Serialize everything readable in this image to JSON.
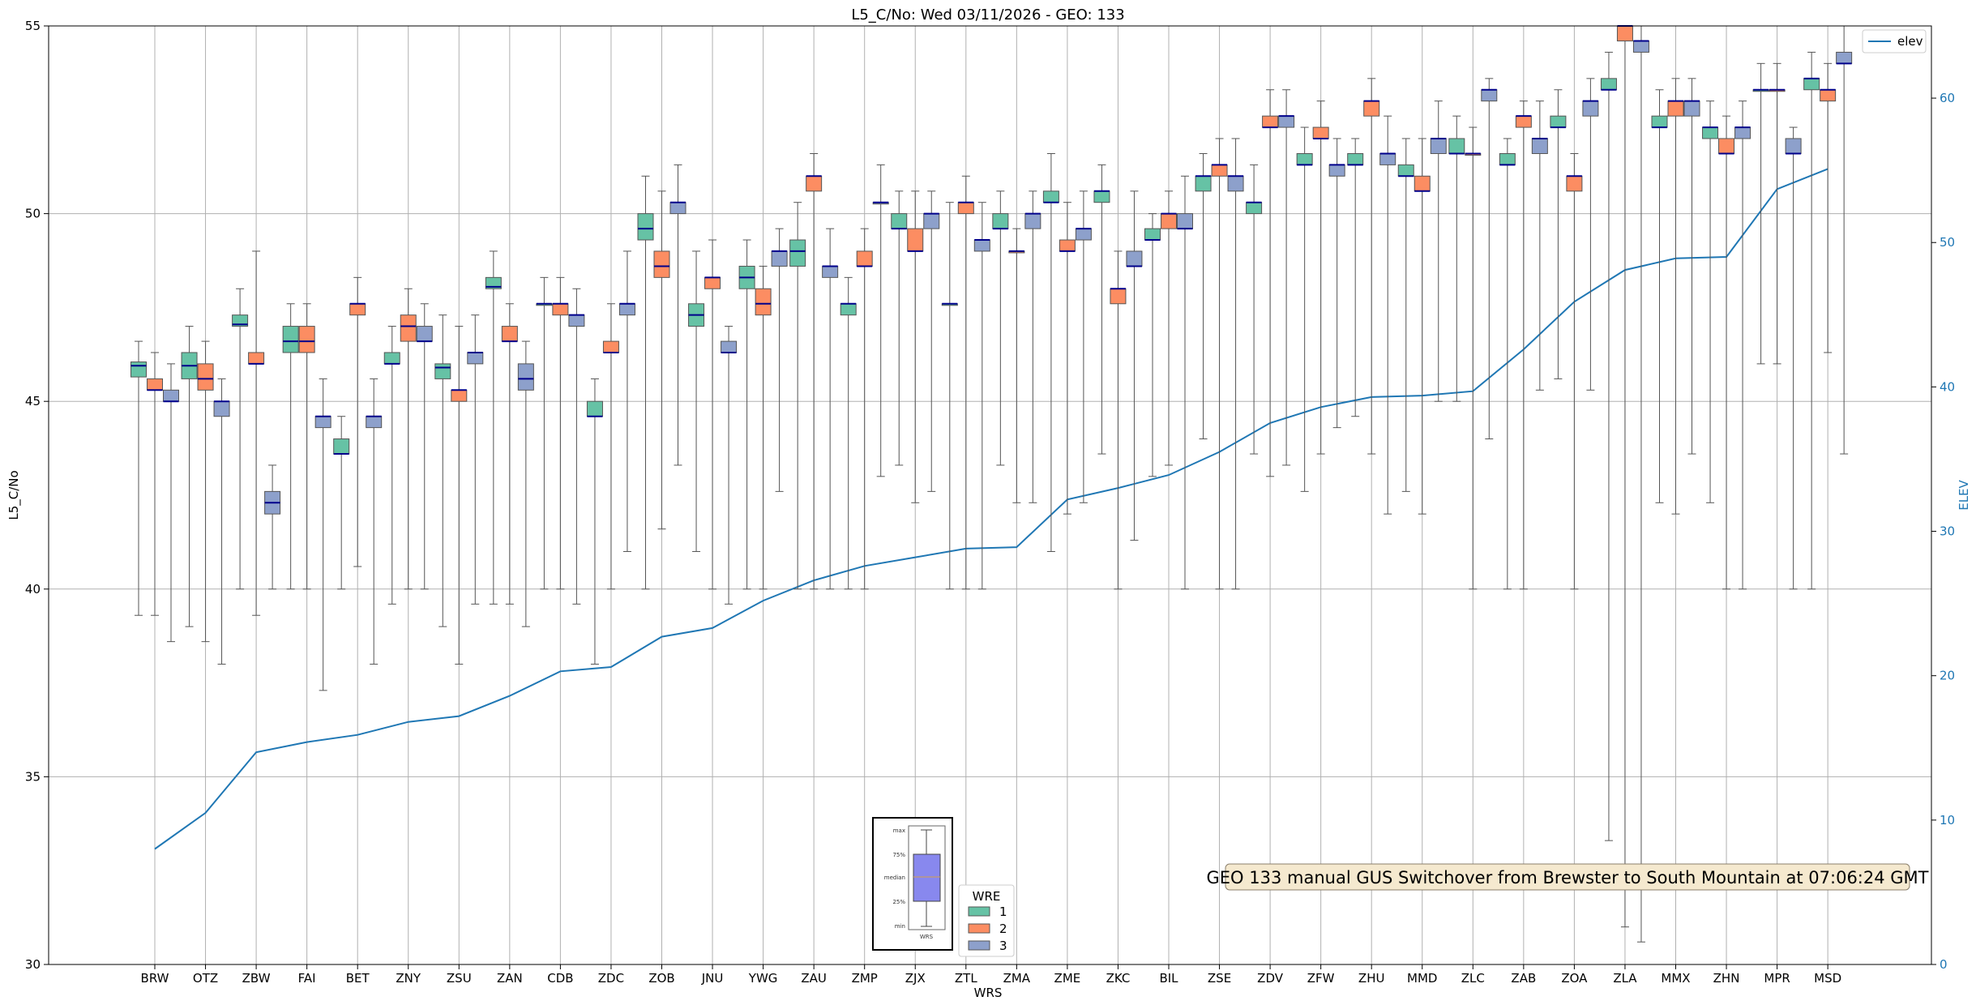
{
  "chart_data": {
    "type": "box",
    "title": "L5_C/No: Wed 03/11/2026 - GEO: 133",
    "xlabel": "WRS",
    "ylabel": "L5_C/No",
    "y2label": "ELEV",
    "ylim": [
      30,
      55
    ],
    "y2lim": [
      0,
      65
    ],
    "yticks": [
      30,
      35,
      40,
      45,
      50,
      55
    ],
    "y2ticks": [
      0,
      10,
      20,
      30,
      40,
      50,
      60
    ],
    "grid": true,
    "categories": [
      "BRW",
      "OTZ",
      "ZBW",
      "FAI",
      "BET",
      "ZNY",
      "ZSU",
      "ZAN",
      "CDB",
      "ZDC",
      "ZOB",
      "JNU",
      "YWG",
      "ZAU",
      "ZMP",
      "ZJX",
      "ZTL",
      "ZMA",
      "ZME",
      "ZKC",
      "BIL",
      "ZSE",
      "ZDV",
      "ZFW",
      "ZHU",
      "MMD",
      "ZLC",
      "ZAB",
      "ZOA",
      "ZLA",
      "MMX",
      "ZHN",
      "MPR",
      "MSD"
    ],
    "series_colors": {
      "1": "#66c2a5",
      "2": "#fc8d62",
      "3": "#8da0cb"
    },
    "median_color": "#00008b",
    "elev_color": "#1f77b4",
    "wre_series": [
      {
        "name": "1",
        "boxes": [
          {
            "q1": 45.65,
            "median": 45.95,
            "q3": 46.05,
            "min": 39.3,
            "max": 46.6
          },
          {
            "q1": 45.6,
            "median": 45.95,
            "q3": 46.3,
            "min": 39.0,
            "max": 47.0
          },
          {
            "q1": 47.0,
            "median": 47.05,
            "q3": 47.3,
            "min": 40.0,
            "max": 48.0
          },
          {
            "q1": 46.3,
            "median": 46.6,
            "q3": 47.0,
            "min": 40.0,
            "max": 47.6
          },
          {
            "q1": 43.6,
            "median": 43.6,
            "q3": 44.0,
            "min": 40.0,
            "max": 44.6
          },
          {
            "q1": 46.0,
            "median": 46.0,
            "q3": 46.3,
            "min": 39.6,
            "max": 47.0
          },
          {
            "q1": 45.6,
            "median": 45.9,
            "q3": 46.0,
            "min": 39.0,
            "max": 47.3
          },
          {
            "q1": 48.0,
            "median": 48.05,
            "q3": 48.3,
            "min": 39.6,
            "max": 49.0
          },
          {
            "q1": 47.6,
            "median": 47.6,
            "q3": 47.6,
            "min": 40.0,
            "max": 48.3
          },
          {
            "q1": 44.6,
            "median": 44.6,
            "q3": 45.0,
            "min": 38.0,
            "max": 45.6
          },
          {
            "q1": 49.3,
            "median": 49.6,
            "q3": 50.0,
            "min": 40.0,
            "max": 51.0
          },
          {
            "q1": 47.0,
            "median": 47.3,
            "q3": 47.6,
            "min": 41.0,
            "max": 49.0
          },
          {
            "q1": 48.0,
            "median": 48.3,
            "q3": 48.6,
            "min": 40.0,
            "max": 49.3
          },
          {
            "q1": 48.6,
            "median": 49.0,
            "q3": 49.3,
            "min": 40.0,
            "max": 50.3
          },
          {
            "q1": 47.3,
            "median": 47.6,
            "q3": 47.6,
            "min": 40.0,
            "max": 48.3
          },
          {
            "q1": 49.6,
            "median": 49.6,
            "q3": 50.0,
            "min": 43.3,
            "max": 50.6
          },
          {
            "q1": 47.6,
            "median": 47.6,
            "q3": 47.6,
            "min": 40.0,
            "max": 50.3
          },
          {
            "q1": 49.6,
            "median": 49.6,
            "q3": 50.0,
            "min": 43.3,
            "max": 50.6
          },
          {
            "q1": 50.3,
            "median": 50.3,
            "q3": 50.6,
            "min": 41.0,
            "max": 51.6
          },
          {
            "q1": 50.3,
            "median": 50.6,
            "q3": 50.6,
            "min": 43.6,
            "max": 51.3
          },
          {
            "q1": 49.3,
            "median": 49.3,
            "q3": 49.6,
            "min": 43.0,
            "max": 50.0
          },
          {
            "q1": 50.6,
            "median": 51.0,
            "q3": 51.0,
            "min": 44.0,
            "max": 51.6
          },
          {
            "q1": 50.0,
            "median": 50.3,
            "q3": 50.3,
            "min": 43.6,
            "max": 51.3
          },
          {
            "q1": 51.3,
            "median": 51.3,
            "q3": 51.6,
            "min": 42.6,
            "max": 52.3
          },
          {
            "q1": 51.3,
            "median": 51.3,
            "q3": 51.6,
            "min": 44.6,
            "max": 52.0
          },
          {
            "q1": 51.0,
            "median": 51.0,
            "q3": 51.3,
            "min": 42.6,
            "max": 52.0
          },
          {
            "q1": 51.6,
            "median": 51.6,
            "q3": 52.0,
            "min": 45.0,
            "max": 52.6
          },
          {
            "q1": 51.3,
            "median": 51.3,
            "q3": 51.6,
            "min": 40.0,
            "max": 52.0
          },
          {
            "q1": 52.3,
            "median": 52.3,
            "q3": 52.6,
            "min": 45.6,
            "max": 53.3
          },
          {
            "q1": 53.3,
            "median": 53.3,
            "q3": 53.6,
            "min": 33.3,
            "max": 54.3
          },
          {
            "q1": 52.3,
            "median": 52.3,
            "q3": 52.6,
            "min": 42.3,
            "max": 53.3
          },
          {
            "q1": 52.0,
            "median": 52.3,
            "q3": 52.3,
            "min": 42.3,
            "max": 53.0
          },
          {
            "q1": 53.3,
            "median": 53.3,
            "q3": 53.3,
            "min": 46.0,
            "max": 54.0
          },
          {
            "q1": 53.3,
            "median": 53.6,
            "q3": 53.6,
            "min": 40.0,
            "max": 54.3
          }
        ]
      },
      {
        "name": "2",
        "boxes": [
          {
            "q1": 45.3,
            "median": 45.3,
            "q3": 45.6,
            "min": 39.3,
            "max": 46.3
          },
          {
            "q1": 45.3,
            "median": 45.6,
            "q3": 46.0,
            "min": 38.6,
            "max": 46.6
          },
          {
            "q1": 46.0,
            "median": 46.0,
            "q3": 46.3,
            "min": 39.3,
            "max": 49.0
          },
          {
            "q1": 46.3,
            "median": 46.6,
            "q3": 47.0,
            "min": 40.0,
            "max": 47.6
          },
          {
            "q1": 47.3,
            "median": 47.6,
            "q3": 47.6,
            "min": 40.6,
            "max": 48.3
          },
          {
            "q1": 46.6,
            "median": 47.0,
            "q3": 47.3,
            "min": 40.0,
            "max": 48.0
          },
          {
            "q1": 45.0,
            "median": 45.3,
            "q3": 45.3,
            "min": 38.0,
            "max": 47.0
          },
          {
            "q1": 46.6,
            "median": 46.6,
            "q3": 47.0,
            "min": 39.6,
            "max": 47.6
          },
          {
            "q1": 47.3,
            "median": 47.6,
            "q3": 47.6,
            "min": 40.0,
            "max": 48.3
          },
          {
            "q1": 46.3,
            "median": 46.3,
            "q3": 46.6,
            "min": 40.0,
            "max": 47.6
          },
          {
            "q1": 48.3,
            "median": 48.6,
            "q3": 49.0,
            "min": 41.6,
            "max": 50.6
          },
          {
            "q1": 48.0,
            "median": 48.3,
            "q3": 48.3,
            "min": 40.0,
            "max": 49.3
          },
          {
            "q1": 47.3,
            "median": 47.6,
            "q3": 48.0,
            "min": 40.0,
            "max": 48.6
          },
          {
            "q1": 50.6,
            "median": 51.0,
            "q3": 51.0,
            "min": 40.0,
            "max": 51.6
          },
          {
            "q1": 48.6,
            "median": 48.6,
            "q3": 49.0,
            "min": 40.0,
            "max": 49.6
          },
          {
            "q1": 49.0,
            "median": 49.0,
            "q3": 49.6,
            "min": 42.3,
            "max": 50.6
          },
          {
            "q1": 50.0,
            "median": 50.3,
            "q3": 50.3,
            "min": 40.0,
            "max": 51.0
          },
          {
            "q1": 49.0,
            "median": 49.0,
            "q3": 49.0,
            "min": 42.3,
            "max": 49.6
          },
          {
            "q1": 49.0,
            "median": 49.0,
            "q3": 49.3,
            "min": 42.0,
            "max": 50.3
          },
          {
            "q1": 47.6,
            "median": 48.0,
            "q3": 48.0,
            "min": 40.0,
            "max": 49.0
          },
          {
            "q1": 49.6,
            "median": 50.0,
            "q3": 50.0,
            "min": 43.3,
            "max": 50.6
          },
          {
            "q1": 51.0,
            "median": 51.3,
            "q3": 51.3,
            "min": 40.0,
            "max": 52.0
          },
          {
            "q1": 52.3,
            "median": 52.3,
            "q3": 52.6,
            "min": 43.0,
            "max": 53.3
          },
          {
            "q1": 52.0,
            "median": 52.0,
            "q3": 52.3,
            "min": 43.6,
            "max": 53.0
          },
          {
            "q1": 52.6,
            "median": 53.0,
            "q3": 53.0,
            "min": 43.6,
            "max": 53.6
          },
          {
            "q1": 50.6,
            "median": 50.6,
            "q3": 51.0,
            "min": 42.0,
            "max": 52.0
          },
          {
            "q1": 51.6,
            "median": 51.6,
            "q3": 51.6,
            "min": 40.0,
            "max": 52.3
          },
          {
            "q1": 52.3,
            "median": 52.6,
            "q3": 52.6,
            "min": 40.0,
            "max": 53.0
          },
          {
            "q1": 50.6,
            "median": 51.0,
            "q3": 51.0,
            "min": 40.0,
            "max": 51.6
          },
          {
            "q1": 54.6,
            "median": 55.0,
            "q3": 55.0,
            "min": 31.0,
            "max": 55.0
          },
          {
            "q1": 52.6,
            "median": 53.0,
            "q3": 53.0,
            "min": 42.0,
            "max": 53.6
          },
          {
            "q1": 51.6,
            "median": 51.6,
            "q3": 52.0,
            "min": 40.0,
            "max": 52.6
          },
          {
            "q1": 53.3,
            "median": 53.3,
            "q3": 53.3,
            "min": 46.0,
            "max": 54.0
          },
          {
            "q1": 53.0,
            "median": 53.3,
            "q3": 53.3,
            "min": 46.3,
            "max": 54.0
          }
        ]
      },
      {
        "name": "3",
        "boxes": [
          {
            "q1": 45.0,
            "median": 45.0,
            "q3": 45.3,
            "min": 38.6,
            "max": 46.0
          },
          {
            "q1": 44.6,
            "median": 45.0,
            "q3": 45.0,
            "min": 38.0,
            "max": 45.6
          },
          {
            "q1": 42.0,
            "median": 42.3,
            "q3": 42.6,
            "min": 40.0,
            "max": 43.3
          },
          {
            "q1": 44.3,
            "median": 44.6,
            "q3": 44.6,
            "min": 37.3,
            "max": 45.6
          },
          {
            "q1": 44.3,
            "median": 44.6,
            "q3": 44.6,
            "min": 38.0,
            "max": 45.6
          },
          {
            "q1": 46.6,
            "median": 46.6,
            "q3": 47.0,
            "min": 40.0,
            "max": 47.6
          },
          {
            "q1": 46.0,
            "median": 46.3,
            "q3": 46.3,
            "min": 39.6,
            "max": 47.3
          },
          {
            "q1": 45.3,
            "median": 45.6,
            "q3": 46.0,
            "min": 39.0,
            "max": 46.6
          },
          {
            "q1": 47.0,
            "median": 47.3,
            "q3": 47.3,
            "min": 39.6,
            "max": 48.0
          },
          {
            "q1": 47.3,
            "median": 47.6,
            "q3": 47.6,
            "min": 41.0,
            "max": 49.0
          },
          {
            "q1": 50.0,
            "median": 50.3,
            "q3": 50.3,
            "min": 43.3,
            "max": 51.3
          },
          {
            "q1": 46.3,
            "median": 46.3,
            "q3": 46.6,
            "min": 39.6,
            "max": 47.0
          },
          {
            "q1": 48.6,
            "median": 49.0,
            "q3": 49.0,
            "min": 42.6,
            "max": 49.6
          },
          {
            "q1": 48.3,
            "median": 48.6,
            "q3": 48.6,
            "min": 40.0,
            "max": 49.6
          },
          {
            "q1": 50.3,
            "median": 50.3,
            "q3": 50.3,
            "min": 43.0,
            "max": 51.3
          },
          {
            "q1": 49.6,
            "median": 50.0,
            "q3": 50.0,
            "min": 42.6,
            "max": 50.6
          },
          {
            "q1": 49.0,
            "median": 49.3,
            "q3": 49.3,
            "min": 40.0,
            "max": 50.3
          },
          {
            "q1": 49.6,
            "median": 50.0,
            "q3": 50.0,
            "min": 42.3,
            "max": 50.6
          },
          {
            "q1": 49.3,
            "median": 49.6,
            "q3": 49.6,
            "min": 42.3,
            "max": 50.6
          },
          {
            "q1": 48.6,
            "median": 48.6,
            "q3": 49.0,
            "min": 41.3,
            "max": 50.6
          },
          {
            "q1": 49.6,
            "median": 49.6,
            "q3": 50.0,
            "min": 40.0,
            "max": 51.0
          },
          {
            "q1": 50.6,
            "median": 51.0,
            "q3": 51.0,
            "min": 40.0,
            "max": 52.0
          },
          {
            "q1": 52.3,
            "median": 52.6,
            "q3": 52.6,
            "min": 43.3,
            "max": 53.3
          },
          {
            "q1": 51.0,
            "median": 51.3,
            "q3": 51.3,
            "min": 44.3,
            "max": 52.0
          },
          {
            "q1": 51.3,
            "median": 51.6,
            "q3": 51.6,
            "min": 42.0,
            "max": 52.6
          },
          {
            "q1": 51.6,
            "median": 52.0,
            "q3": 52.0,
            "min": 45.0,
            "max": 53.0
          },
          {
            "q1": 53.0,
            "median": 53.3,
            "q3": 53.3,
            "min": 44.0,
            "max": 53.6
          },
          {
            "q1": 51.6,
            "median": 52.0,
            "q3": 52.0,
            "min": 45.3,
            "max": 53.0
          },
          {
            "q1": 52.6,
            "median": 53.0,
            "q3": 53.0,
            "min": 45.3,
            "max": 53.6
          },
          {
            "q1": 54.3,
            "median": 54.6,
            "q3": 54.6,
            "min": 30.6,
            "max": 55.0
          },
          {
            "q1": 52.6,
            "median": 53.0,
            "q3": 53.0,
            "min": 43.6,
            "max": 53.6
          },
          {
            "q1": 52.0,
            "median": 52.3,
            "q3": 52.3,
            "min": 40.0,
            "max": 53.0
          },
          {
            "q1": 51.6,
            "median": 51.6,
            "q3": 52.0,
            "min": 40.0,
            "max": 52.3
          },
          {
            "q1": 54.0,
            "median": 54.0,
            "q3": 54.3,
            "min": 43.6,
            "max": 55.0
          }
        ]
      }
    ],
    "elev": {
      "name": "elev",
      "values": [
        8.0,
        10.5,
        14.7,
        15.4,
        15.9,
        16.8,
        17.2,
        18.6,
        20.3,
        20.6,
        22.7,
        23.3,
        25.2,
        26.6,
        27.6,
        28.2,
        28.8,
        28.9,
        32.2,
        33.0,
        33.9,
        35.5,
        37.5,
        38.6,
        39.3,
        39.4,
        39.7,
        42.6,
        45.9,
        48.1,
        48.9,
        49.0,
        53.7,
        55.1
      ]
    },
    "annotation": "GEO 133 manual GUS Switchover from Brewster to South Mountain at 07:06:24 GMT",
    "legend": {
      "title": "WRE",
      "entries": [
        "1",
        "2",
        "3"
      ],
      "line_entry": "elev",
      "position": "bottom-center / top-right"
    },
    "box_key": {
      "labels": [
        "max",
        "75%",
        "median",
        "25%",
        "min"
      ],
      "caption": "WRS"
    }
  }
}
